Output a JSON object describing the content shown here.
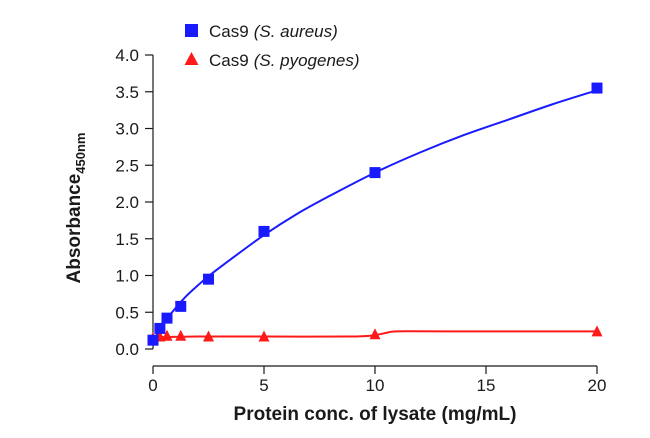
{
  "chart_data": {
    "type": "scatter",
    "xlabel": "Protein conc. of lysate (mg/mL)",
    "ylabel_main": "Absorbance",
    "ylabel_sub": "450nm",
    "xlim": [
      0,
      20
    ],
    "ylim": [
      0,
      4.0
    ],
    "x_ticks": [
      "0",
      "5",
      "10",
      "15",
      "20"
    ],
    "y_ticks": [
      "0.0",
      "0.5",
      "1.0",
      "1.5",
      "2.0",
      "2.5",
      "3.0",
      "3.5",
      "4.0"
    ],
    "grid": false,
    "legend_position": "top-left",
    "series": [
      {
        "name_plain": "Cas9",
        "name_italic": "(S. aureus)",
        "color": "#1a1aff",
        "marker": "square",
        "x": [
          0.0,
          0.31,
          0.63,
          1.25,
          2.5,
          5,
          10,
          20
        ],
        "y": [
          0.12,
          0.28,
          0.42,
          0.58,
          0.95,
          1.6,
          2.4,
          3.55
        ],
        "fit": [
          [
            0,
            0.1
          ],
          [
            0.5,
            0.36
          ],
          [
            1,
            0.55
          ],
          [
            1.5,
            0.72
          ],
          [
            2,
            0.86
          ],
          [
            2.5,
            0.99
          ],
          [
            3.5,
            1.22
          ],
          [
            5,
            1.55
          ],
          [
            6.5,
            1.84
          ],
          [
            8,
            2.09
          ],
          [
            10,
            2.4
          ],
          [
            12,
            2.67
          ],
          [
            14,
            2.91
          ],
          [
            16,
            3.12
          ],
          [
            18,
            3.33
          ],
          [
            20,
            3.52
          ]
        ]
      },
      {
        "name_plain": "Cas9",
        "name_italic": "(S. pyogenes)",
        "color": "#ff1a1a",
        "marker": "triangle",
        "x": [
          0.0,
          0.31,
          0.63,
          1.25,
          2.5,
          5,
          10,
          20
        ],
        "y": [
          0.15,
          0.17,
          0.18,
          0.18,
          0.17,
          0.17,
          0.2,
          0.24
        ],
        "fit": [
          [
            0,
            0.16
          ],
          [
            2,
            0.17
          ],
          [
            5,
            0.17
          ],
          [
            9,
            0.17
          ],
          [
            10,
            0.19
          ],
          [
            10.5,
            0.22
          ],
          [
            11,
            0.24
          ],
          [
            13,
            0.24
          ],
          [
            20,
            0.24
          ]
        ]
      }
    ]
  }
}
